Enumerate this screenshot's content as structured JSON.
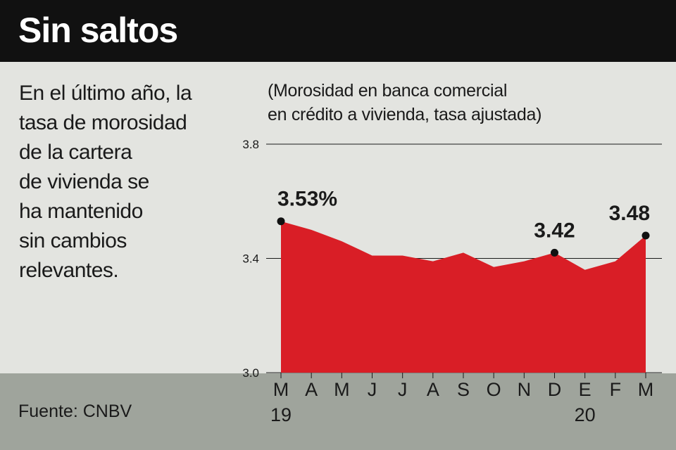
{
  "header": {
    "title": "Sin saltos"
  },
  "description": {
    "lines": [
      "En el último año, la",
      "tasa de morosidad",
      "de la cartera",
      "de vivienda se",
      "ha mantenido",
      "sin cambios",
      "relevantes."
    ]
  },
  "source": "Fuente: CNBV",
  "colors": {
    "header_bg": "#111111",
    "area_fill": "#d91e26",
    "background": "#e3e4e0",
    "footer_bg": "#9fa49c"
  },
  "chart_data": {
    "type": "area",
    "title": "",
    "subtitle_lines": [
      "(Morosidad en banca comercial",
      "en crédito a vivienda, tasa ajustada)"
    ],
    "xlabel": "",
    "ylabel": "",
    "ylim": [
      3.0,
      3.8
    ],
    "yticks": [
      "3.0",
      "3.4",
      "3.8"
    ],
    "y_tick_values": [
      3.0,
      3.4,
      3.8
    ],
    "categories": [
      "M",
      "A",
      "M",
      "J",
      "J",
      "A",
      "S",
      "O",
      "N",
      "D",
      "E",
      "F",
      "M"
    ],
    "year_labels": [
      {
        "index": 0,
        "label": "19"
      },
      {
        "index": 10,
        "label": "20"
      }
    ],
    "series": [
      {
        "values": [
          3.53,
          3.5,
          3.46,
          3.41,
          3.41,
          3.39,
          3.42,
          3.37,
          3.39,
          3.42,
          3.36,
          3.39,
          3.48
        ]
      }
    ],
    "annotations": [
      {
        "index": 0,
        "label": "3.53%"
      },
      {
        "index": 9,
        "label": "3.42"
      },
      {
        "index": 12,
        "label": "3.48"
      }
    ],
    "grid": true
  }
}
